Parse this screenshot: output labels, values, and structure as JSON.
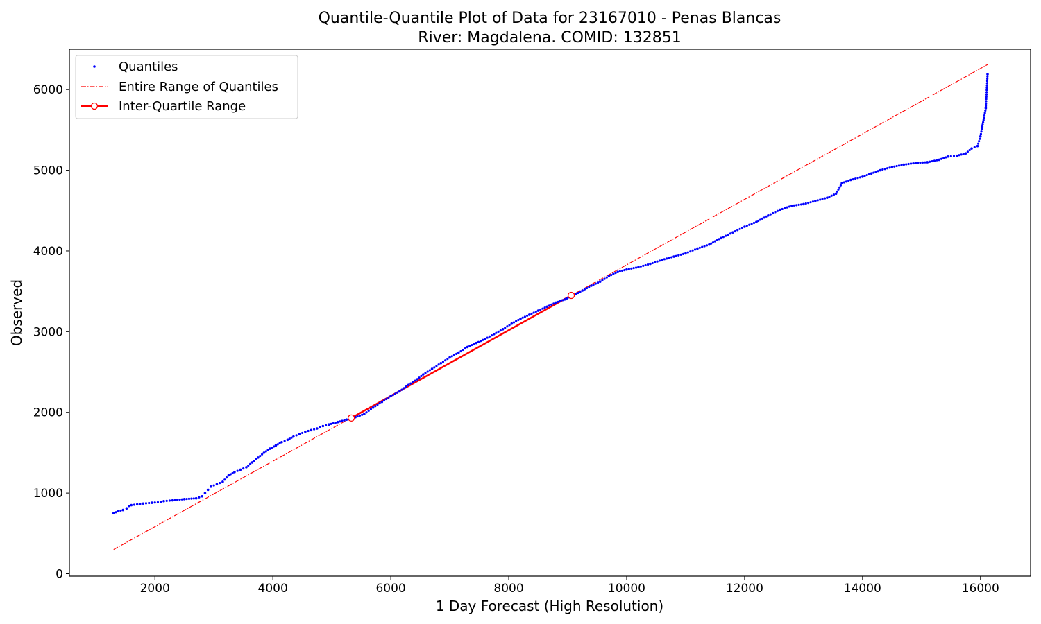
{
  "chart_data": {
    "type": "scatter",
    "title": "Quantile-Quantile Plot of Data for 23167010 - Penas Blancas",
    "subtitle": "River: Magdalena. COMID: 132851",
    "xlabel": "1 Day Forecast (High Resolution)",
    "ylabel": "Observed",
    "xlim": [
      550,
      16850
    ],
    "ylim": [
      -30,
      6500
    ],
    "xticks": [
      2000,
      4000,
      6000,
      8000,
      10000,
      12000,
      14000,
      16000
    ],
    "yticks": [
      0,
      1000,
      2000,
      3000,
      4000,
      5000,
      6000
    ],
    "grid": false,
    "legend_position": "top-left",
    "colors": {
      "quantiles": "#0000ff",
      "entire_range": "#ff0000",
      "iqr": "#ff0000"
    },
    "series": [
      {
        "name": "Quantiles",
        "style": "markers",
        "points": [
          [
            1300,
            750
          ],
          [
            1380,
            775
          ],
          [
            1460,
            790
          ],
          [
            1520,
            810
          ],
          [
            1560,
            840
          ],
          [
            1600,
            850
          ],
          [
            1700,
            860
          ],
          [
            1800,
            870
          ],
          [
            1950,
            880
          ],
          [
            2100,
            890
          ],
          [
            2150,
            900
          ],
          [
            2300,
            910
          ],
          [
            2500,
            925
          ],
          [
            2700,
            935
          ],
          [
            2800,
            960
          ],
          [
            2850,
            1000
          ],
          [
            2900,
            1040
          ],
          [
            2950,
            1080
          ],
          [
            3050,
            1110
          ],
          [
            3150,
            1140
          ],
          [
            3250,
            1220
          ],
          [
            3350,
            1260
          ],
          [
            3450,
            1290
          ],
          [
            3550,
            1320
          ],
          [
            3650,
            1380
          ],
          [
            3750,
            1440
          ],
          [
            3850,
            1500
          ],
          [
            3950,
            1550
          ],
          [
            4050,
            1590
          ],
          [
            4150,
            1630
          ],
          [
            4250,
            1660
          ],
          [
            4350,
            1700
          ],
          [
            4450,
            1730
          ],
          [
            4550,
            1760
          ],
          [
            4650,
            1780
          ],
          [
            4750,
            1800
          ],
          [
            4850,
            1830
          ],
          [
            4950,
            1850
          ],
          [
            5100,
            1880
          ],
          [
            5250,
            1910
          ],
          [
            5400,
            1940
          ],
          [
            5550,
            1980
          ],
          [
            5700,
            2060
          ],
          [
            5850,
            2130
          ],
          [
            6000,
            2200
          ],
          [
            6150,
            2260
          ],
          [
            6300,
            2340
          ],
          [
            6450,
            2410
          ],
          [
            6550,
            2470
          ],
          [
            6700,
            2540
          ],
          [
            6850,
            2610
          ],
          [
            7000,
            2680
          ],
          [
            7150,
            2740
          ],
          [
            7300,
            2810
          ],
          [
            7450,
            2860
          ],
          [
            7600,
            2910
          ],
          [
            7750,
            2970
          ],
          [
            7900,
            3030
          ],
          [
            8050,
            3100
          ],
          [
            8200,
            3160
          ],
          [
            8350,
            3210
          ],
          [
            8500,
            3260
          ],
          [
            8650,
            3310
          ],
          [
            8800,
            3360
          ],
          [
            8950,
            3400
          ],
          [
            9100,
            3450
          ],
          [
            9250,
            3510
          ],
          [
            9400,
            3570
          ],
          [
            9550,
            3620
          ],
          [
            9700,
            3690
          ],
          [
            9850,
            3740
          ],
          [
            10000,
            3770
          ],
          [
            10200,
            3800
          ],
          [
            10400,
            3840
          ],
          [
            10600,
            3890
          ],
          [
            10800,
            3930
          ],
          [
            11000,
            3970
          ],
          [
            11200,
            4030
          ],
          [
            11400,
            4080
          ],
          [
            11600,
            4160
          ],
          [
            11800,
            4230
          ],
          [
            12000,
            4300
          ],
          [
            12200,
            4360
          ],
          [
            12400,
            4440
          ],
          [
            12600,
            4510
          ],
          [
            12800,
            4560
          ],
          [
            13000,
            4580
          ],
          [
            13200,
            4620
          ],
          [
            13400,
            4660
          ],
          [
            13550,
            4710
          ],
          [
            13650,
            4840
          ],
          [
            13800,
            4880
          ],
          [
            14000,
            4920
          ],
          [
            14150,
            4960
          ],
          [
            14300,
            5000
          ],
          [
            14500,
            5040
          ],
          [
            14700,
            5070
          ],
          [
            14900,
            5090
          ],
          [
            15100,
            5100
          ],
          [
            15300,
            5130
          ],
          [
            15450,
            5170
          ],
          [
            15600,
            5180
          ],
          [
            15750,
            5210
          ],
          [
            15850,
            5270
          ],
          [
            15950,
            5300
          ],
          [
            16000,
            5420
          ],
          [
            16030,
            5540
          ],
          [
            16060,
            5650
          ],
          [
            16090,
            5770
          ],
          [
            16120,
            6190
          ]
        ]
      },
      {
        "name": "Entire Range of Quantiles",
        "style": "dashdot",
        "points": [
          [
            1300,
            300
          ],
          [
            16120,
            6310
          ]
        ]
      },
      {
        "name": "Inter-Quartile Range",
        "style": "line-endpoint-circles",
        "points": [
          [
            5330,
            1930
          ],
          [
            9060,
            3450
          ]
        ]
      }
    ]
  }
}
